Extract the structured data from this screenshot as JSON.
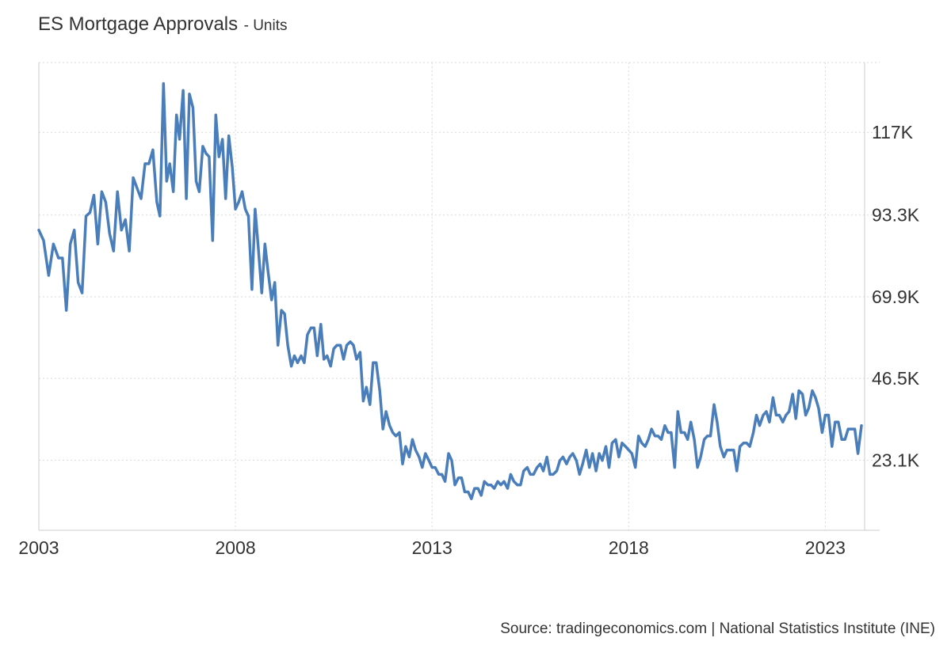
{
  "title": "ES Mortgage Approvals",
  "unit_label": "- Units",
  "source": "Source: tradingeconomics.com | National Statistics Institute (INE)",
  "colors": {
    "line": "#4a7ebb",
    "grid": "#d9d9d9",
    "axis": "#cccccc",
    "text": "#333333"
  },
  "chart_data": {
    "type": "line",
    "title": "ES Mortgage Approvals",
    "xlabel": "",
    "ylabel": "Units",
    "x_ticks": [
      "2003",
      "2008",
      "2013",
      "2018",
      "2023"
    ],
    "y_ticks": [
      {
        "value": 23100,
        "label": "23.1K"
      },
      {
        "value": 46500,
        "label": "46.5K"
      },
      {
        "value": 69900,
        "label": "69.9K"
      },
      {
        "value": 93300,
        "label": "93.3K"
      },
      {
        "value": 117000,
        "label": "117K"
      }
    ],
    "xlim": [
      2003.0,
      2024.0
    ],
    "ylim": [
      3000,
      137000
    ],
    "grid": true,
    "legend": "none",
    "series": [
      {
        "points": [
          [
            2003.0,
            89000
          ],
          [
            2003.12,
            86000
          ],
          [
            2003.25,
            76000
          ],
          [
            2003.37,
            85000
          ],
          [
            2003.5,
            81000
          ],
          [
            2003.6,
            81000
          ],
          [
            2003.7,
            66000
          ],
          [
            2003.8,
            85000
          ],
          [
            2003.9,
            89000
          ],
          [
            2004.0,
            74000
          ],
          [
            2004.1,
            71000
          ],
          [
            2004.2,
            93000
          ],
          [
            2004.3,
            94000
          ],
          [
            2004.4,
            99000
          ],
          [
            2004.5,
            85000
          ],
          [
            2004.6,
            100000
          ],
          [
            2004.7,
            97000
          ],
          [
            2004.8,
            88000
          ],
          [
            2004.9,
            83000
          ],
          [
            2005.0,
            100000
          ],
          [
            2005.1,
            89000
          ],
          [
            2005.2,
            92000
          ],
          [
            2005.3,
            83000
          ],
          [
            2005.4,
            104000
          ],
          [
            2005.5,
            101000
          ],
          [
            2005.6,
            98000
          ],
          [
            2005.7,
            108000
          ],
          [
            2005.8,
            108000
          ],
          [
            2005.9,
            112000
          ],
          [
            2006.0,
            97000
          ],
          [
            2006.08,
            93000
          ],
          [
            2006.17,
            131000
          ],
          [
            2006.25,
            103000
          ],
          [
            2006.33,
            108000
          ],
          [
            2006.42,
            100000
          ],
          [
            2006.5,
            122000
          ],
          [
            2006.58,
            115000
          ],
          [
            2006.67,
            129000
          ],
          [
            2006.75,
            98000
          ],
          [
            2006.83,
            128000
          ],
          [
            2006.92,
            124000
          ],
          [
            2007.0,
            103000
          ],
          [
            2007.08,
            100000
          ],
          [
            2007.17,
            113000
          ],
          [
            2007.25,
            111000
          ],
          [
            2007.33,
            110000
          ],
          [
            2007.42,
            86000
          ],
          [
            2007.5,
            122000
          ],
          [
            2007.58,
            110000
          ],
          [
            2007.67,
            115000
          ],
          [
            2007.75,
            98000
          ],
          [
            2007.83,
            116000
          ],
          [
            2007.92,
            107000
          ],
          [
            2008.0,
            95000
          ],
          [
            2008.08,
            97000
          ],
          [
            2008.17,
            100000
          ],
          [
            2008.25,
            95000
          ],
          [
            2008.33,
            93000
          ],
          [
            2008.42,
            72000
          ],
          [
            2008.5,
            95000
          ],
          [
            2008.58,
            84000
          ],
          [
            2008.67,
            71000
          ],
          [
            2008.75,
            85000
          ],
          [
            2008.83,
            77000
          ],
          [
            2008.92,
            69000
          ],
          [
            2009.0,
            74000
          ],
          [
            2009.08,
            56000
          ],
          [
            2009.17,
            66000
          ],
          [
            2009.25,
            65000
          ],
          [
            2009.33,
            56000
          ],
          [
            2009.42,
            50000
          ],
          [
            2009.5,
            53000
          ],
          [
            2009.58,
            51000
          ],
          [
            2009.67,
            53000
          ],
          [
            2009.75,
            51000
          ],
          [
            2009.83,
            59000
          ],
          [
            2009.92,
            61000
          ],
          [
            2010.0,
            61000
          ],
          [
            2010.08,
            53000
          ],
          [
            2010.17,
            62000
          ],
          [
            2010.25,
            52000
          ],
          [
            2010.33,
            53000
          ],
          [
            2010.42,
            50000
          ],
          [
            2010.5,
            55000
          ],
          [
            2010.58,
            56000
          ],
          [
            2010.67,
            56000
          ],
          [
            2010.75,
            52000
          ],
          [
            2010.83,
            56000
          ],
          [
            2010.92,
            57000
          ],
          [
            2011.0,
            56000
          ],
          [
            2011.08,
            52000
          ],
          [
            2011.17,
            54000
          ],
          [
            2011.25,
            40000
          ],
          [
            2011.33,
            44000
          ],
          [
            2011.42,
            39000
          ],
          [
            2011.5,
            51000
          ],
          [
            2011.58,
            51000
          ],
          [
            2011.67,
            43000
          ],
          [
            2011.75,
            32000
          ],
          [
            2011.83,
            37000
          ],
          [
            2011.92,
            33000
          ],
          [
            2012.0,
            31000
          ],
          [
            2012.08,
            30000
          ],
          [
            2012.17,
            31000
          ],
          [
            2012.25,
            22000
          ],
          [
            2012.33,
            27000
          ],
          [
            2012.42,
            24000
          ],
          [
            2012.5,
            29000
          ],
          [
            2012.58,
            26000
          ],
          [
            2012.67,
            24000
          ],
          [
            2012.75,
            21000
          ],
          [
            2012.83,
            25000
          ],
          [
            2012.92,
            23000
          ],
          [
            2013.0,
            21000
          ],
          [
            2013.08,
            21000
          ],
          [
            2013.17,
            19000
          ],
          [
            2013.25,
            19000
          ],
          [
            2013.33,
            17000
          ],
          [
            2013.42,
            25000
          ],
          [
            2013.5,
            23000
          ],
          [
            2013.58,
            16000
          ],
          [
            2013.67,
            18000
          ],
          [
            2013.75,
            18000
          ],
          [
            2013.83,
            14000
          ],
          [
            2013.92,
            14000
          ],
          [
            2014.0,
            12000
          ],
          [
            2014.08,
            15000
          ],
          [
            2014.17,
            15000
          ],
          [
            2014.25,
            13000
          ],
          [
            2014.33,
            17000
          ],
          [
            2014.42,
            16000
          ],
          [
            2014.5,
            16000
          ],
          [
            2014.58,
            15000
          ],
          [
            2014.67,
            17000
          ],
          [
            2014.75,
            16000
          ],
          [
            2014.83,
            17000
          ],
          [
            2014.92,
            15000
          ],
          [
            2015.0,
            19000
          ],
          [
            2015.08,
            17000
          ],
          [
            2015.17,
            16000
          ],
          [
            2015.25,
            16000
          ],
          [
            2015.33,
            20000
          ],
          [
            2015.42,
            21000
          ],
          [
            2015.5,
            19000
          ],
          [
            2015.58,
            19000
          ],
          [
            2015.67,
            21000
          ],
          [
            2015.75,
            22000
          ],
          [
            2015.83,
            20000
          ],
          [
            2015.92,
            24000
          ],
          [
            2016.0,
            19000
          ],
          [
            2016.08,
            19000
          ],
          [
            2016.17,
            20000
          ],
          [
            2016.25,
            23000
          ],
          [
            2016.33,
            24000
          ],
          [
            2016.42,
            22000
          ],
          [
            2016.5,
            24000
          ],
          [
            2016.58,
            25000
          ],
          [
            2016.67,
            23000
          ],
          [
            2016.75,
            19000
          ],
          [
            2016.83,
            22000
          ],
          [
            2016.92,
            26000
          ],
          [
            2017.0,
            21000
          ],
          [
            2017.08,
            25000
          ],
          [
            2017.17,
            20000
          ],
          [
            2017.25,
            25000
          ],
          [
            2017.33,
            23000
          ],
          [
            2017.42,
            27000
          ],
          [
            2017.5,
            21000
          ],
          [
            2017.58,
            28000
          ],
          [
            2017.67,
            29000
          ],
          [
            2017.75,
            24000
          ],
          [
            2017.83,
            28000
          ],
          [
            2017.92,
            27000
          ],
          [
            2018.0,
            26000
          ],
          [
            2018.08,
            25000
          ],
          [
            2018.17,
            21000
          ],
          [
            2018.25,
            30000
          ],
          [
            2018.33,
            28000
          ],
          [
            2018.42,
            27000
          ],
          [
            2018.5,
            29000
          ],
          [
            2018.58,
            32000
          ],
          [
            2018.67,
            30000
          ],
          [
            2018.75,
            30000
          ],
          [
            2018.83,
            29000
          ],
          [
            2018.92,
            33000
          ],
          [
            2019.0,
            31000
          ],
          [
            2019.08,
            31000
          ],
          [
            2019.17,
            21000
          ],
          [
            2019.25,
            37000
          ],
          [
            2019.33,
            31000
          ],
          [
            2019.42,
            31000
          ],
          [
            2019.5,
            29000
          ],
          [
            2019.58,
            34000
          ],
          [
            2019.67,
            29000
          ],
          [
            2019.75,
            21000
          ],
          [
            2019.83,
            24000
          ],
          [
            2019.92,
            29000
          ],
          [
            2020.0,
            30000
          ],
          [
            2020.08,
            30000
          ],
          [
            2020.17,
            39000
          ],
          [
            2020.25,
            34000
          ],
          [
            2020.33,
            27000
          ],
          [
            2020.42,
            24000
          ],
          [
            2020.5,
            26000
          ],
          [
            2020.58,
            26000
          ],
          [
            2020.67,
            26000
          ],
          [
            2020.75,
            20000
          ],
          [
            2020.83,
            27000
          ],
          [
            2020.92,
            28000
          ],
          [
            2021.0,
            28000
          ],
          [
            2021.08,
            27000
          ],
          [
            2021.17,
            31000
          ],
          [
            2021.25,
            36000
          ],
          [
            2021.33,
            33000
          ],
          [
            2021.42,
            36000
          ],
          [
            2021.5,
            37000
          ],
          [
            2021.58,
            34000
          ],
          [
            2021.67,
            41000
          ],
          [
            2021.75,
            36000
          ],
          [
            2021.83,
            36000
          ],
          [
            2021.92,
            34000
          ],
          [
            2022.0,
            36000
          ],
          [
            2022.08,
            37000
          ],
          [
            2022.17,
            42000
          ],
          [
            2022.25,
            35000
          ],
          [
            2022.33,
            43000
          ],
          [
            2022.42,
            42000
          ],
          [
            2022.5,
            36000
          ],
          [
            2022.58,
            38000
          ],
          [
            2022.67,
            43000
          ],
          [
            2022.75,
            41000
          ],
          [
            2022.83,
            38000
          ],
          [
            2022.92,
            31000
          ],
          [
            2023.0,
            36000
          ],
          [
            2023.08,
            36000
          ],
          [
            2023.17,
            27000
          ],
          [
            2023.25,
            34000
          ],
          [
            2023.33,
            34000
          ],
          [
            2023.42,
            29000
          ],
          [
            2023.5,
            29000
          ],
          [
            2023.58,
            32000
          ],
          [
            2023.67,
            32000
          ],
          [
            2023.75,
            32000
          ],
          [
            2023.83,
            25000
          ],
          [
            2023.92,
            33000
          ]
        ]
      }
    ]
  }
}
